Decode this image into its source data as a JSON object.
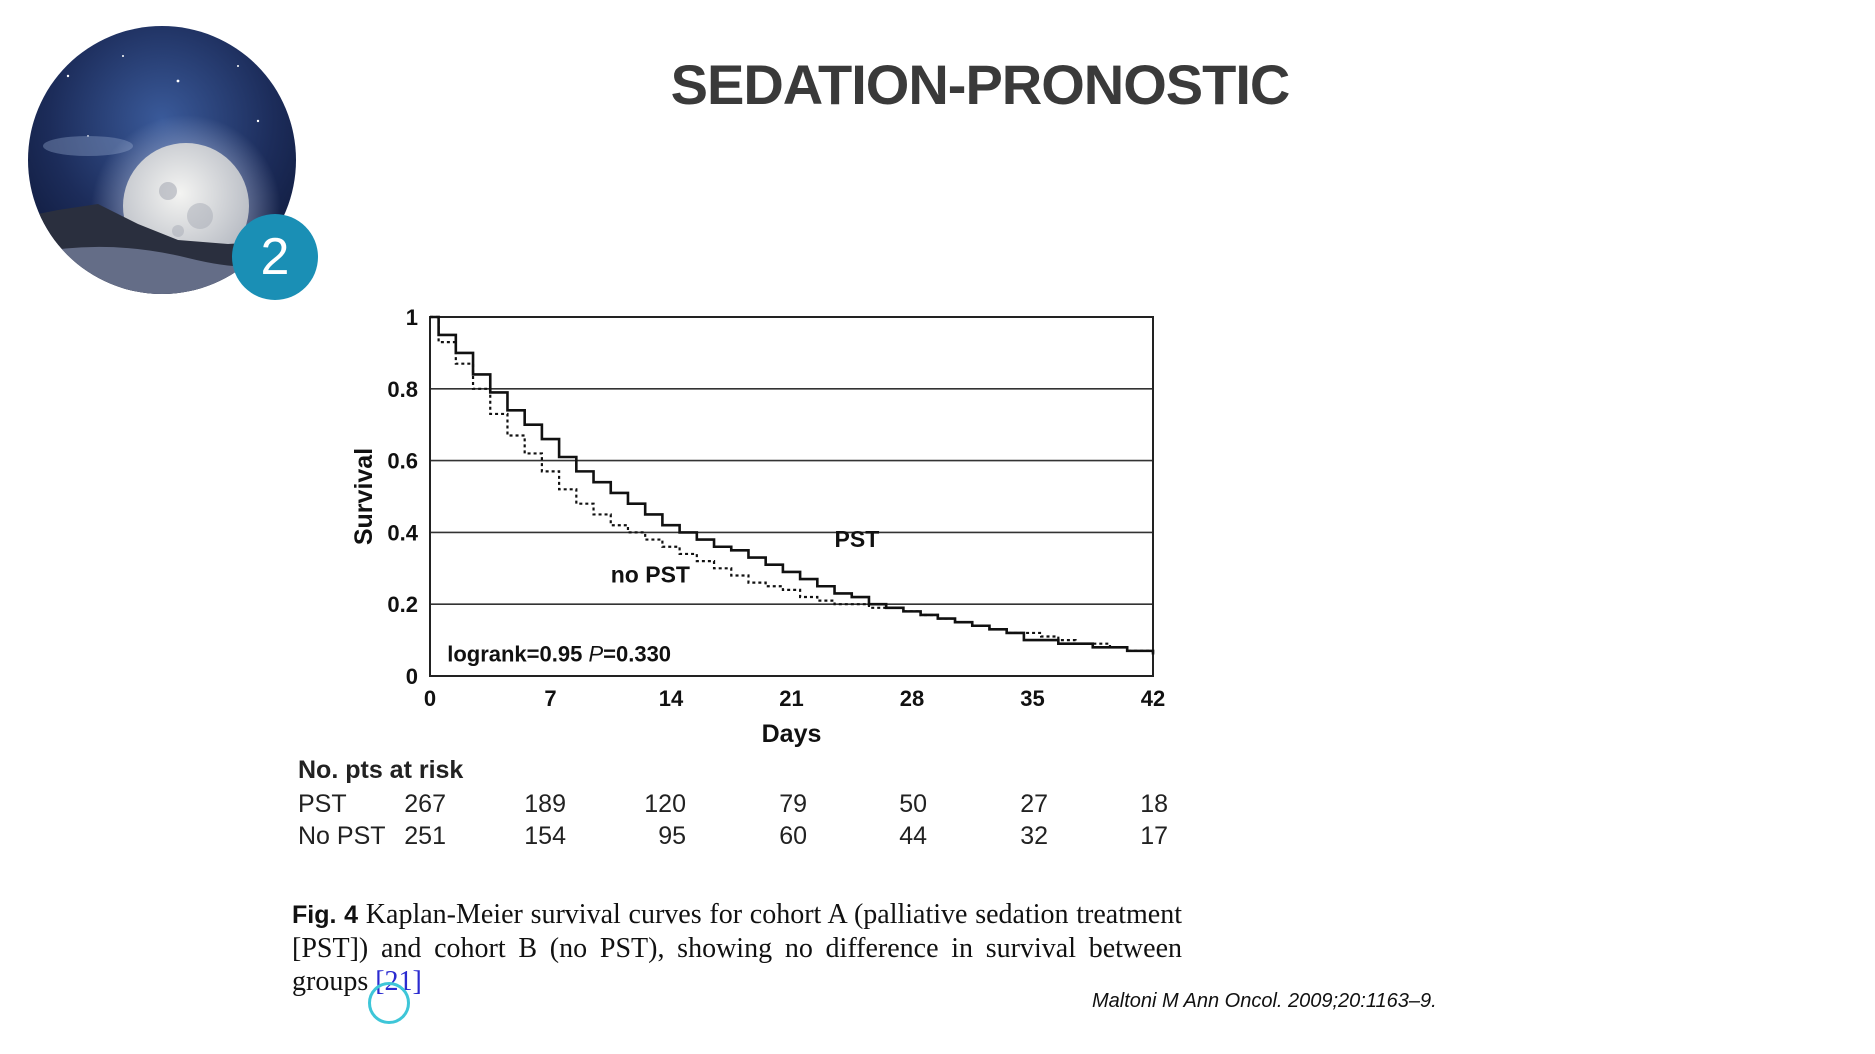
{
  "slide": {
    "title": "SEDATION-PRONOSTIC",
    "badge_number": "2",
    "accent_color": "#1a8fb5"
  },
  "chart_data": {
    "type": "line",
    "style": "step",
    "xlabel": "Days",
    "ylabel": "Survival",
    "xlim": [
      0,
      42
    ],
    "ylim": [
      0,
      1
    ],
    "x_ticks": [
      "0",
      "7",
      "14",
      "21",
      "28",
      "35",
      "42"
    ],
    "y_ticks": [
      "0",
      "0.2",
      "0.4",
      "0.6",
      "0.8",
      "1"
    ],
    "y_tick_values": [
      0,
      0.2,
      0.4,
      0.6,
      0.8,
      1
    ],
    "grid": "horizontal",
    "annotation": {
      "prefix": "logrank=0.95 ",
      "p_label": "P",
      "p_value": "=0.330"
    },
    "series": [
      {
        "name": "PST",
        "line": "solid",
        "x": [
          0,
          0.5,
          1.5,
          2.5,
          3.5,
          4.5,
          5.5,
          6.5,
          7.5,
          8.5,
          9.5,
          10.5,
          11.5,
          12.5,
          13.5,
          14.5,
          15.5,
          16.5,
          17.5,
          18.5,
          19.5,
          20.5,
          21.5,
          22.5,
          23.5,
          24.5,
          25.5,
          26.5,
          27.5,
          28.5,
          29.5,
          30.5,
          31.5,
          32.5,
          33.5,
          34.5,
          35.5,
          36.5,
          37.5,
          38.5,
          39.5,
          40.5,
          41.5,
          42
        ],
        "y": [
          1,
          0.95,
          0.9,
          0.84,
          0.79,
          0.74,
          0.7,
          0.66,
          0.61,
          0.57,
          0.54,
          0.51,
          0.48,
          0.45,
          0.42,
          0.4,
          0.38,
          0.36,
          0.35,
          0.33,
          0.31,
          0.29,
          0.27,
          0.25,
          0.23,
          0.22,
          0.2,
          0.19,
          0.18,
          0.17,
          0.16,
          0.15,
          0.14,
          0.13,
          0.12,
          0.1,
          0.1,
          0.09,
          0.09,
          0.08,
          0.08,
          0.07,
          0.07,
          0.06
        ]
      },
      {
        "name": "no PST",
        "line": "dotted",
        "x": [
          0,
          0.5,
          1.5,
          2.5,
          3.5,
          4.5,
          5.5,
          6.5,
          7.5,
          8.5,
          9.5,
          10.5,
          11.5,
          12.5,
          13.5,
          14.5,
          15.5,
          16.5,
          17.5,
          18.5,
          19.5,
          20.5,
          21.5,
          22.5,
          23.5,
          24.5,
          25.5,
          26.5,
          27.5,
          28.5,
          29.5,
          30.5,
          31.5,
          32.5,
          33.5,
          34.5,
          35.5,
          36.5,
          37.5,
          38.5,
          39.5,
          40.5,
          41.5,
          42
        ],
        "y": [
          1,
          0.93,
          0.87,
          0.8,
          0.73,
          0.67,
          0.62,
          0.57,
          0.52,
          0.48,
          0.45,
          0.42,
          0.4,
          0.38,
          0.36,
          0.34,
          0.32,
          0.3,
          0.28,
          0.26,
          0.25,
          0.24,
          0.22,
          0.21,
          0.2,
          0.2,
          0.19,
          0.19,
          0.18,
          0.17,
          0.16,
          0.15,
          0.14,
          0.13,
          0.12,
          0.12,
          0.11,
          0.1,
          0.09,
          0.09,
          0.08,
          0.07,
          0.07,
          0.06
        ]
      }
    ],
    "curve_labels": [
      {
        "text": "PST",
        "x": 23.5,
        "y": 0.36
      },
      {
        "text": "no PST",
        "x": 10.5,
        "y": 0.26
      }
    ]
  },
  "risk_table": {
    "header": "No. pts at risk",
    "rows": [
      {
        "label": "PST",
        "values": [
          "267",
          "189",
          "120",
          "79",
          "50",
          "27",
          "18"
        ]
      },
      {
        "label": "No PST",
        "values": [
          "251",
          "154",
          "95",
          "60",
          "44",
          "32",
          "17"
        ]
      }
    ]
  },
  "caption": {
    "fig_label": "Fig. 4",
    "text": " Kaplan-Meier survival curves for cohort A (palliative sedation treatment [PST]) and cohort B (no PST), showing no difference in survival between groups ",
    "ref": "[21]"
  },
  "citation": "Maltoni M Ann Oncol. 2009;20:1163–9."
}
